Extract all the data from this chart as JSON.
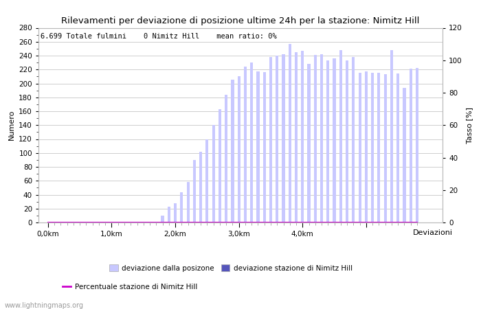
{
  "title": "Rilevamenti per deviazione di posizione ultime 24h per la stazione: Nimitz Hill",
  "subtitle": "6.699 Totale fulmini    0 Nimitz Hill    mean ratio: 0%",
  "xlabel": "Deviazioni",
  "ylabel_left": "Numero",
  "ylabel_right": "Tasso [%]",
  "watermark": "www.lightningmaps.org",
  "bar_values": [
    0,
    0,
    0,
    0,
    0,
    0,
    0,
    0,
    0,
    0,
    1,
    1,
    0,
    0,
    0,
    0,
    0,
    0,
    10,
    23,
    28,
    43,
    58,
    90,
    102,
    120,
    140,
    163,
    184,
    205,
    210,
    224,
    230,
    217,
    216,
    238,
    240,
    242,
    257,
    245,
    247,
    228,
    241,
    242,
    233,
    236,
    248,
    233,
    238,
    215,
    217,
    215,
    215,
    213,
    248,
    214,
    194,
    221,
    222
  ],
  "station_values": [
    0,
    0,
    0,
    0,
    0,
    0,
    0,
    0,
    0,
    0,
    0,
    0,
    0,
    0,
    0,
    0,
    0,
    0,
    0,
    0,
    0,
    0,
    0,
    0,
    0,
    0,
    0,
    0,
    0,
    0,
    0,
    0,
    0,
    0,
    0,
    0,
    0,
    0,
    0,
    0,
    0,
    0,
    0,
    0,
    0,
    0,
    0,
    0,
    0,
    0,
    0,
    0,
    0,
    0,
    0,
    0,
    0,
    0,
    0
  ],
  "ratio_values": [
    0,
    0,
    0,
    0,
    0,
    0,
    0,
    0,
    0,
    0,
    0,
    0,
    0,
    0,
    0,
    0,
    0,
    0,
    0,
    0,
    0,
    0,
    0,
    0,
    0,
    0,
    0,
    0,
    0,
    0,
    0,
    0,
    0,
    0,
    0,
    0,
    0,
    0,
    0,
    0,
    0,
    0,
    0,
    0,
    0,
    0,
    0,
    0,
    0,
    0,
    0,
    0,
    0,
    0,
    0,
    0,
    0,
    0,
    0
  ],
  "x_tick_positions": [
    0,
    10,
    20,
    30,
    40,
    50
  ],
  "x_tick_labels": [
    "0,0km",
    "1,0km",
    "2,0km",
    "3,0km",
    "4,0km",
    ""
  ],
  "ylim_left": [
    0,
    280
  ],
  "ylim_right": [
    0,
    120
  ],
  "bar_color_light": "#c8c8ff",
  "bar_color_dark": "#5555bb",
  "line_color": "#cc00cc",
  "grid_color": "#bbbbbb",
  "bg_color": "#ffffff",
  "title_fontsize": 9.5,
  "axis_fontsize": 8,
  "tick_fontsize": 7.5,
  "legend_labels": [
    "deviazione dalla posizone",
    "deviazione stazione di Nimitz Hill",
    "Percentuale stazione di Nimitz Hill"
  ],
  "n_bars": 59
}
